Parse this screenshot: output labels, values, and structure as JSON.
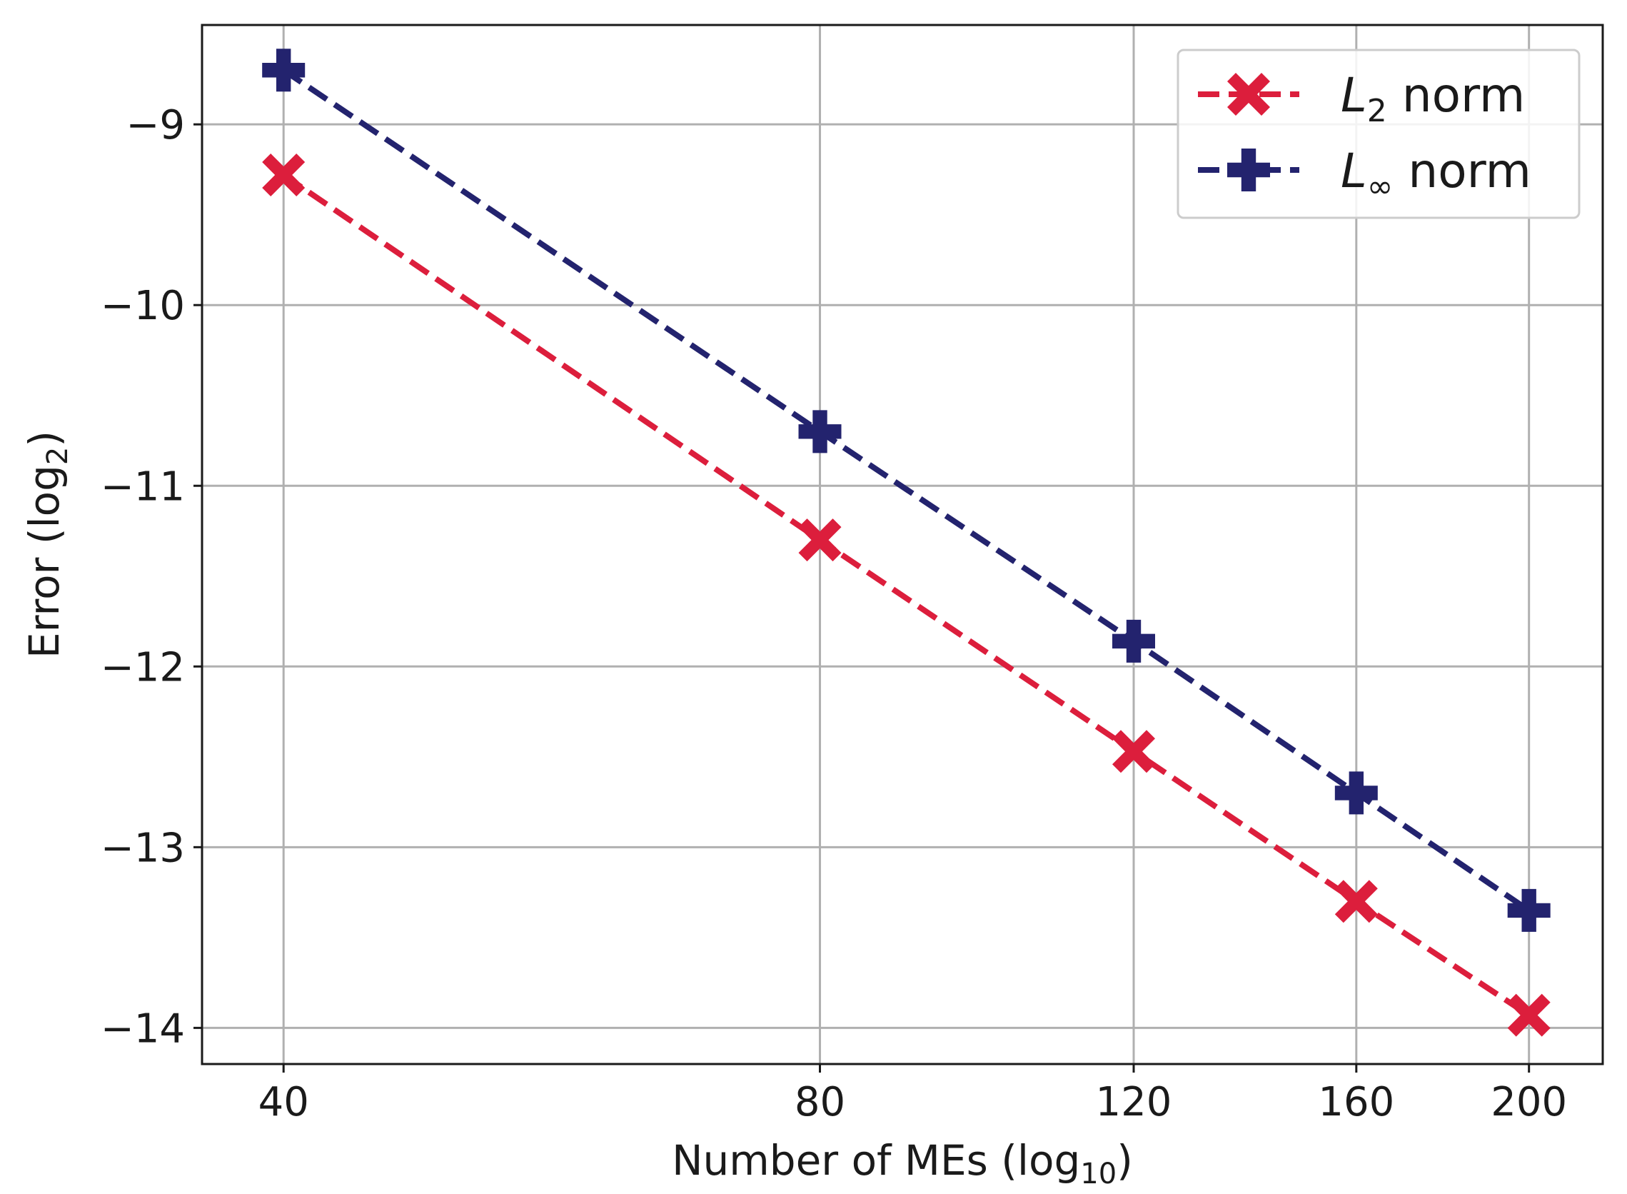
{
  "chart_data": {
    "type": "line",
    "title": "",
    "xlabel": {
      "prefix": "Number of MEs (log",
      "sub": "10",
      "suffix": ")"
    },
    "ylabel": {
      "prefix": "Error (log",
      "sub": "2",
      "suffix": ")"
    },
    "x_scale": "log",
    "xlim": [
      36,
      220
    ],
    "ylim": [
      -14.2,
      -8.45
    ],
    "x": [
      40,
      80,
      120,
      160,
      200
    ],
    "x_tick_labels": [
      "40",
      "80",
      "120",
      "160",
      "200"
    ],
    "y_ticks": [
      -9,
      -10,
      -11,
      -12,
      -13,
      -14
    ],
    "y_tick_labels": [
      "−9",
      "−10",
      "−11",
      "−12",
      "−13",
      "−14"
    ],
    "grid": true,
    "legend_position": "top-right",
    "series": [
      {
        "name": "L2 norm",
        "legend_main": "L",
        "legend_sub": "2",
        "legend_rest": " norm",
        "color": "#dc1e3c",
        "marker": "x-filled",
        "linestyle": "dashed",
        "values": [
          -9.28,
          -11.3,
          -12.47,
          -13.3,
          -13.93
        ]
      },
      {
        "name": "L∞ norm",
        "legend_main": "L",
        "legend_sub": "∞",
        "legend_rest": " norm",
        "color": "#23236e",
        "marker": "plus-filled",
        "linestyle": "dashed",
        "values": [
          -8.7,
          -10.7,
          -11.86,
          -12.7,
          -13.35
        ]
      }
    ]
  }
}
